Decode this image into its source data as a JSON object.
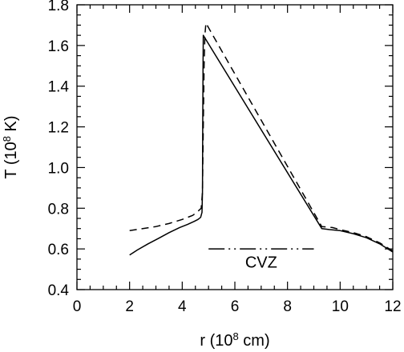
{
  "chart_data": {
    "type": "line",
    "xlim": [
      0,
      12
    ],
    "ylim": [
      0.4,
      1.8
    ],
    "xticks": [
      0,
      2,
      4,
      6,
      8,
      10,
      12
    ],
    "yticks": [
      0.4,
      0.6,
      0.8,
      1.0,
      1.2,
      1.4,
      1.6,
      1.8
    ],
    "xtick_labels": [
      "0",
      "2",
      "4",
      "6",
      "8",
      "10",
      "12"
    ],
    "ytick_labels": [
      "0.4",
      "0.6",
      "0.8",
      "1.0",
      "1.2",
      "1.4",
      "1.6",
      "1.8"
    ],
    "xlabel": {
      "pre": "r  (10",
      "sup": "8",
      "post": " cm)"
    },
    "ylabel": {
      "pre": "T  (10",
      "sup": "8",
      "post": " K)"
    },
    "grid": false,
    "series": [
      {
        "style": "solid",
        "color": "#000000",
        "x": [
          2.0,
          2.3,
          2.7,
          3.1,
          3.5,
          3.9,
          4.2,
          4.45,
          4.6,
          4.7,
          4.75,
          4.77,
          4.78,
          4.79,
          4.8,
          9.3,
          9.6,
          10.0,
          10.5,
          11.0,
          11.5,
          12.0
        ],
        "y": [
          0.57,
          0.595,
          0.625,
          0.652,
          0.68,
          0.705,
          0.72,
          0.735,
          0.745,
          0.755,
          0.78,
          0.88,
          1.2,
          1.5,
          1.65,
          0.7,
          0.695,
          0.69,
          0.675,
          0.655,
          0.625,
          0.585
        ]
      },
      {
        "style": "dashed",
        "color": "#000000",
        "x": [
          2.0,
          2.5,
          3.0,
          3.5,
          4.0,
          4.4,
          4.6,
          4.72,
          4.77,
          4.8,
          4.83,
          4.86,
          4.9,
          9.3,
          9.7,
          10.0,
          10.5,
          11.0,
          11.5,
          12.0
        ],
        "y": [
          0.69,
          0.7,
          0.71,
          0.725,
          0.745,
          0.765,
          0.785,
          0.8,
          0.88,
          1.2,
          1.5,
          1.65,
          1.71,
          0.71,
          0.705,
          0.695,
          0.68,
          0.66,
          0.63,
          0.59
        ]
      }
    ],
    "annotations": [
      {
        "type": "dash-dot-dot-line",
        "label": "CVZ",
        "x": [
          5.0,
          9.0
        ],
        "y": 0.6,
        "label_x": 7.0,
        "label_y": 0.535
      }
    ]
  }
}
